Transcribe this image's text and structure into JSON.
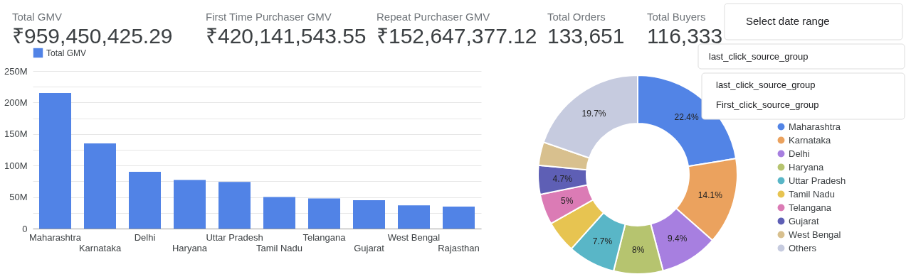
{
  "chart_data": [
    {
      "type": "other",
      "annotations": [
        "Total GMV",
        "₹959,450,425.29",
        "First Time Purchaser GMV",
        "₹420,141,543.55",
        "Repeat Purchaser GMV",
        "₹152,647,377.12",
        "Total Orders",
        "133,651",
        "Total Buyers",
        "116,333",
        "Select date range",
        "last_click_source_group",
        "last_click_source_group",
        "First_click_source_group"
      ]
    },
    {
      "type": "bar",
      "categories": [
        "Maharashtra",
        "Karnataka",
        "Delhi",
        "Haryana",
        "Uttar Pradesh",
        "Tamil Nadu",
        "Telangana",
        "Gujarat",
        "West Bengal",
        "Rajasthan"
      ],
      "series": [
        {
          "name": "Total GMV",
          "color": "#5183e6",
          "values": [
            215,
            135,
            90,
            77,
            74,
            50,
            48,
            45,
            37,
            35
          ]
        }
      ],
      "ylim": [
        0,
        250
      ],
      "yticks": [
        {
          "value": 0,
          "label": "0"
        },
        {
          "value": 25,
          "label": null
        },
        {
          "value": 50,
          "label": "50M"
        },
        {
          "value": 75,
          "label": null
        },
        {
          "value": 100,
          "label": "100M"
        },
        {
          "value": 125,
          "label": null
        },
        {
          "value": 150,
          "label": "150M"
        },
        {
          "value": 175,
          "label": null
        },
        {
          "value": 200,
          "label": "200M"
        },
        {
          "value": 225,
          "label": null
        },
        {
          "value": 250,
          "label": "250M"
        }
      ],
      "grid": "y",
      "legend": "top left"
    },
    {
      "type": "donut",
      "categories": [
        "Maharashtra",
        "Karnataka",
        "Delhi",
        "Haryana",
        "Uttar Pradesh",
        "Tamil Nadu",
        "Telangana",
        "Gujarat",
        "West Bengal",
        "Others"
      ],
      "values": [
        22.4,
        14.1,
        9.4,
        8,
        7.7,
        5.2,
        5,
        4.7,
        3.8,
        19.7
      ],
      "colors": [
        "#5284e6",
        "#eba25e",
        "#a77fe0",
        "#b6c46f",
        "#59b6c7",
        "#e7c451",
        "#db7bb5",
        "#5e5fb5",
        "#d8c08e",
        "#c6cbdf"
      ],
      "value_labels": [
        "22.4%",
        "14.1%",
        "9.4%",
        "8%",
        "7.7%",
        null,
        "5%",
        "4.7%",
        null,
        "19.7%"
      ],
      "legend": "right"
    }
  ]
}
